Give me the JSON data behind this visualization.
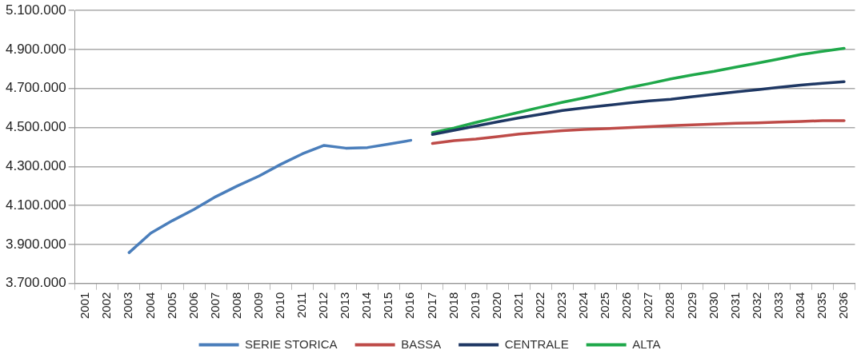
{
  "chart_data": {
    "type": "line",
    "categories": [
      "2001",
      "2002",
      "2003",
      "2004",
      "2005",
      "2006",
      "2007",
      "2008",
      "2009",
      "2010",
      "2011",
      "2012",
      "2013",
      "2014",
      "2015",
      "2016",
      "2017",
      "2018",
      "2019",
      "2020",
      "2021",
      "2022",
      "2023",
      "2024",
      "2025",
      "2026",
      "2027",
      "2028",
      "2029",
      "2030",
      "2031",
      "2032",
      "2033",
      "2034",
      "2035",
      "2036"
    ],
    "series": [
      {
        "name": "SERIE STORICA",
        "color": "#4a7ebb",
        "values": [
          null,
          null,
          3858000,
          3958000,
          4022000,
          4080000,
          4145000,
          4200000,
          4251000,
          4311000,
          4365000,
          4408000,
          4394000,
          4397000,
          4415000,
          4434000,
          null,
          null,
          null,
          null,
          null,
          null,
          null,
          null,
          null,
          null,
          null,
          null,
          null,
          null,
          null,
          null,
          null,
          null,
          null,
          null
        ]
      },
      {
        "name": "BASSA",
        "color": "#be4b48",
        "values": [
          null,
          null,
          null,
          null,
          null,
          null,
          null,
          null,
          null,
          null,
          null,
          null,
          null,
          null,
          null,
          null,
          4418000,
          4432000,
          4441000,
          4453000,
          4466000,
          4475000,
          4484000,
          4490000,
          4494000,
          4499000,
          4504000,
          4509000,
          4513000,
          4518000,
          4522000,
          4524000,
          4528000,
          4531000,
          4535000,
          4535000
        ]
      },
      {
        "name": "CENTRALE",
        "color": "#1f3864",
        "values": [
          null,
          null,
          null,
          null,
          null,
          null,
          null,
          null,
          null,
          null,
          null,
          null,
          null,
          null,
          null,
          null,
          4464000,
          4486000,
          4507000,
          4529000,
          4549000,
          4568000,
          4587000,
          4601000,
          4613000,
          4625000,
          4636000,
          4645000,
          4658000,
          4670000,
          4683000,
          4694000,
          4706000,
          4717000,
          4727000,
          4735000
        ]
      },
      {
        "name": "ALTA",
        "color": "#1fa84a",
        "values": [
          null,
          null,
          null,
          null,
          null,
          null,
          null,
          null,
          null,
          null,
          null,
          null,
          null,
          null,
          null,
          null,
          4474000,
          4497000,
          4526000,
          4552000,
          4578000,
          4604000,
          4629000,
          4652000,
          4677000,
          4703000,
          4725000,
          4749000,
          4770000,
          4788000,
          4810000,
          4830000,
          4852000,
          4874000,
          4891000,
          4906000
        ]
      }
    ],
    "ylim": [
      3700000,
      5100000
    ],
    "yticks": [
      {
        "value": 3700000,
        "label": "3.700.000"
      },
      {
        "value": 3900000,
        "label": "3.900.000"
      },
      {
        "value": 4100000,
        "label": "4.100.000"
      },
      {
        "value": 4300000,
        "label": "4.300.000"
      },
      {
        "value": 4500000,
        "label": "4.500.000"
      },
      {
        "value": 4700000,
        "label": "4.700.000"
      },
      {
        "value": 4900000,
        "label": "4.900.000"
      },
      {
        "value": 5100000,
        "label": "5.100.000"
      }
    ],
    "grid": "y",
    "legend": "bottom",
    "marker": "none",
    "line_style": "solid"
  }
}
